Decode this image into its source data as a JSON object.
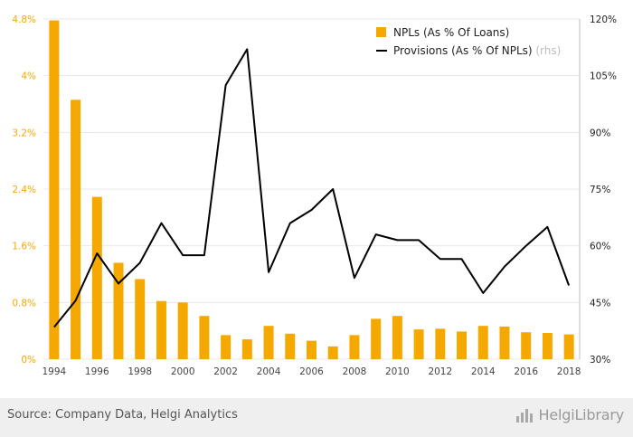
{
  "colors": {
    "bar": "#F5A800",
    "line": "#000000",
    "left_axis_text": "#F5A800",
    "right_axis_text": "#222222",
    "grid": "#e8e8e8",
    "axis_muted": "#bdbdbd"
  },
  "chart_data": {
    "type": "bar",
    "x": [
      1994,
      1995,
      1996,
      1997,
      1998,
      1999,
      2000,
      2001,
      2002,
      2003,
      2004,
      2005,
      2006,
      2007,
      2008,
      2009,
      2010,
      2011,
      2012,
      2013,
      2014,
      2015,
      2016,
      2017,
      2018
    ],
    "x_tick_labels": [
      "1994",
      "1996",
      "1998",
      "2000",
      "2002",
      "2004",
      "2006",
      "2008",
      "2010",
      "2012",
      "2014",
      "2016",
      "2018"
    ],
    "series": [
      {
        "name": "NPLs (As % Of Loans)",
        "type": "bar",
        "axis": "left",
        "values": [
          4.78,
          3.66,
          2.29,
          1.36,
          1.13,
          0.82,
          0.8,
          0.61,
          0.34,
          0.28,
          0.47,
          0.36,
          0.26,
          0.18,
          0.34,
          0.57,
          0.61,
          0.42,
          0.43,
          0.39,
          0.47,
          0.46,
          0.38,
          0.37,
          0.35
        ]
      },
      {
        "name": "Provisions (As % Of NPLs)",
        "name_suffix": " (rhs)",
        "type": "line",
        "axis": "right",
        "values": [
          38.5,
          45.5,
          58.0,
          50.0,
          55.5,
          66.0,
          57.5,
          57.5,
          102.5,
          112.0,
          53.0,
          66.0,
          69.5,
          75.0,
          51.5,
          63.0,
          61.5,
          61.5,
          56.5,
          56.5,
          47.5,
          54.5,
          60.0,
          65.0,
          49.5
        ]
      }
    ],
    "y_left": {
      "ylim": [
        0,
        4.8
      ],
      "ticks": [
        0,
        0.8,
        1.6,
        2.4,
        3.2,
        4,
        4.8
      ],
      "tick_labels": [
        "0%",
        "0.8%",
        "1.6%",
        "2.4%",
        "3.2%",
        "4%",
        "4.8%"
      ]
    },
    "y_right": {
      "ylim": [
        30,
        120
      ],
      "ticks": [
        30,
        45,
        60,
        75,
        90,
        105,
        120
      ],
      "tick_labels": [
        "30%",
        "45%",
        "60%",
        "75%",
        "90%",
        "105%",
        "120%"
      ]
    },
    "grid": true,
    "legend_position": "top-right"
  },
  "footer": {
    "source": "Source: Company Data, Helgi Analytics",
    "logo_text": "HelgiLibrary",
    "logo_icon": "bar-chart-logo-icon"
  }
}
